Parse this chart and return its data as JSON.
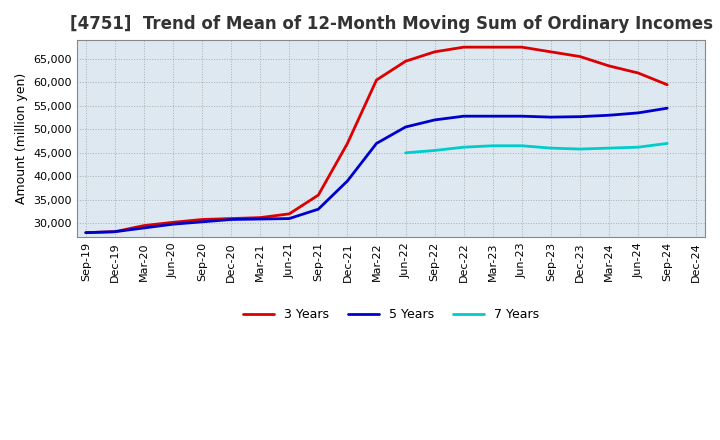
{
  "title": "[4751]  Trend of Mean of 12-Month Moving Sum of Ordinary Incomes",
  "ylabel": "Amount (million yen)",
  "background_color": "#ffffff",
  "plot_bg_color": "#dde8f0",
  "grid_color": "#888888",
  "x_labels": [
    "Sep-19",
    "Dec-19",
    "Mar-20",
    "Jun-20",
    "Sep-20",
    "Dec-20",
    "Mar-21",
    "Jun-21",
    "Sep-21",
    "Dec-21",
    "Mar-22",
    "Jun-22",
    "Sep-22",
    "Dec-22",
    "Mar-23",
    "Jun-23",
    "Sep-23",
    "Dec-23",
    "Mar-24",
    "Jun-24",
    "Sep-24",
    "Dec-24"
  ],
  "series": {
    "3 Years": {
      "color": "#dd0000",
      "data": [
        28000,
        28200,
        29500,
        30200,
        30800,
        31000,
        31200,
        32000,
        36000,
        47000,
        60500,
        64500,
        66500,
        67500,
        67500,
        67500,
        66500,
        65500,
        63500,
        62000,
        59500,
        null
      ]
    },
    "5 Years": {
      "color": "#0000cc",
      "data": [
        28000,
        28200,
        29000,
        29800,
        30300,
        30800,
        30900,
        31000,
        33000,
        39000,
        47000,
        50500,
        52000,
        52800,
        52800,
        52800,
        52600,
        52700,
        53000,
        53500,
        54500,
        null
      ]
    },
    "7 Years": {
      "color": "#00cccc",
      "data": [
        null,
        null,
        null,
        null,
        null,
        null,
        null,
        null,
        null,
        null,
        null,
        45000,
        45500,
        46200,
        46500,
        46500,
        46000,
        45800,
        46000,
        46200,
        47000,
        null
      ]
    },
    "10 Years": {
      "color": "#008000",
      "data": [
        null,
        null,
        null,
        null,
        null,
        null,
        null,
        null,
        null,
        null,
        null,
        null,
        null,
        null,
        null,
        null,
        null,
        null,
        null,
        null,
        null,
        null
      ]
    }
  },
  "ylim": [
    27000,
    69000
  ],
  "yticks": [
    30000,
    35000,
    40000,
    45000,
    50000,
    55000,
    60000,
    65000
  ],
  "title_fontsize": 12,
  "axis_fontsize": 9,
  "tick_fontsize": 8,
  "legend_fontsize": 9,
  "linewidth": 2.0
}
